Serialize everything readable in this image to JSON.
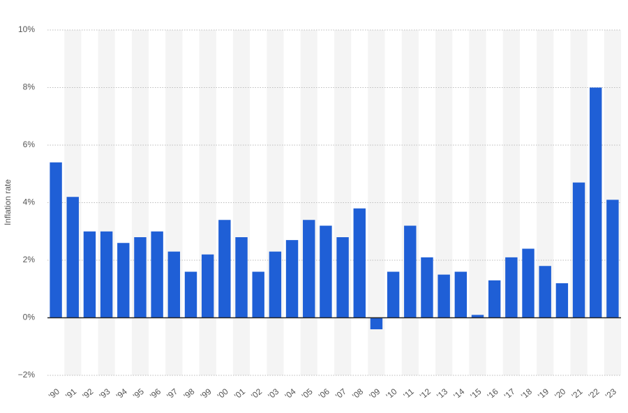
{
  "chart_data": {
    "type": "bar",
    "y_label": "Inflation rate",
    "categories": [
      "'90",
      "'91",
      "'92",
      "'93",
      "'94",
      "'95",
      "'96",
      "'97",
      "'98",
      "'99",
      "'00",
      "'01",
      "'02",
      "'03",
      "'04",
      "'05",
      "'06",
      "'07",
      "'08",
      "'09",
      "'10",
      "'11",
      "'12",
      "'13",
      "'14",
      "'15",
      "'16",
      "'17",
      "'18",
      "'19",
      "'20",
      "'21",
      "'22",
      "'23"
    ],
    "values": [
      5.4,
      4.2,
      3.0,
      3.0,
      2.6,
      2.8,
      3.0,
      2.3,
      1.6,
      2.2,
      3.4,
      2.8,
      1.6,
      2.3,
      2.7,
      3.4,
      3.2,
      2.8,
      3.8,
      -0.4,
      1.6,
      3.2,
      2.1,
      1.5,
      1.6,
      0.1,
      1.3,
      2.1,
      2.4,
      1.8,
      1.2,
      4.7,
      8.0,
      4.1
    ],
    "color": "#1f5fd6",
    "ylim": [
      -2,
      10
    ],
    "yticks": [
      {
        "value": -2,
        "label": "−2%"
      },
      {
        "value": 0,
        "label": "0%"
      },
      {
        "value": 2,
        "label": "2%"
      },
      {
        "value": 4,
        "label": "4%"
      },
      {
        "value": 6,
        "label": "6%"
      },
      {
        "value": 8,
        "label": "8%"
      },
      {
        "value": 10,
        "label": "10%"
      }
    ],
    "grid": true
  }
}
